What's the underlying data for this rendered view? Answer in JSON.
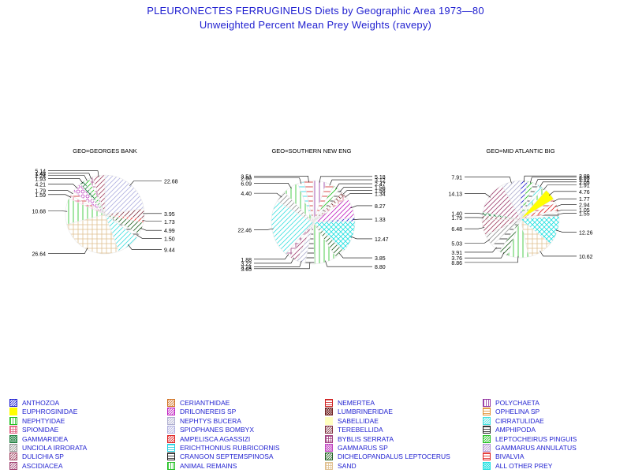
{
  "title": "PLEURONECTES FERRUGINEUS Diets by Geographic Area 1973—80",
  "subtitle": "Unweighted Percent Mean Prey Weights (ravepy)",
  "chart_data": {
    "type": "pie",
    "categories": [
      {
        "name": "ANTHOZOA",
        "color": "#1f1fd0",
        "pattern": "diag"
      },
      {
        "name": "CERIANTHIDAE",
        "color": "#d07020",
        "pattern": "diag"
      },
      {
        "name": "NEMERTEA",
        "color": "#d02020",
        "pattern": "hline"
      },
      {
        "name": "POLYCHAETA",
        "color": "#9030a0",
        "pattern": "vline"
      },
      {
        "name": "EUPHROSINIDAE",
        "color": "#ffff00",
        "pattern": "solid"
      },
      {
        "name": "DRILONEREIS SP",
        "color": "#c020c0",
        "pattern": "diag"
      },
      {
        "name": "LUMBRINERIDAE",
        "color": "#702020",
        "pattern": "cross"
      },
      {
        "name": "OPHELINA SP",
        "color": "#e09030",
        "pattern": "hline"
      },
      {
        "name": "NEPHTYIDAE",
        "color": "#20c020",
        "pattern": "vline"
      },
      {
        "name": "NEPHTYS BUCERA",
        "color": "#b0b0d0",
        "pattern": "diag"
      },
      {
        "name": "SABELLIDAE",
        "color": "#ffffc0",
        "pattern": "solid"
      },
      {
        "name": "CIRRATULIDAE",
        "color": "#40e0e0",
        "pattern": "diag"
      },
      {
        "name": "SPIONIDAE",
        "color": "#e06080",
        "pattern": "grid"
      },
      {
        "name": "SPIOPHANES BOMBYX",
        "color": "#b0b0e0",
        "pattern": "diag"
      },
      {
        "name": "TEREBELLIDA",
        "color": "#803040",
        "pattern": "diag"
      },
      {
        "name": "AMPHIPODA",
        "color": "#202020",
        "pattern": "hline"
      },
      {
        "name": "GAMMARIDEA",
        "color": "#208040",
        "pattern": "cross"
      },
      {
        "name": "AMPELISCA AGASSIZI",
        "color": "#e02020",
        "pattern": "diag"
      },
      {
        "name": "BYBLIS SERRATA",
        "color": "#a04080",
        "pattern": "grid"
      },
      {
        "name": "LEPTOCHEIRUS PINGUIS",
        "color": "#20c020",
        "pattern": "diag"
      },
      {
        "name": "UNCIOLA IRRORATA",
        "color": "#909090",
        "pattern": "diag"
      },
      {
        "name": "ERICHTHONIUS RUBRICORNIS",
        "color": "#20d0e0",
        "pattern": "hline"
      },
      {
        "name": "GAMMARUS SP",
        "color": "#c040c0",
        "pattern": "circle"
      },
      {
        "name": "GAMMARUS ANNULATUS",
        "color": "#b090d0",
        "pattern": "diag"
      },
      {
        "name": "DULICHIA SP",
        "color": "#a04060",
        "pattern": "diag"
      },
      {
        "name": "CRANGON SEPTEMSPINOSA",
        "color": "#202020",
        "pattern": "hline"
      },
      {
        "name": "DICHELOPANDALUS LEPTOCERUS",
        "color": "#206020",
        "pattern": "diag"
      },
      {
        "name": "BIVALVIA",
        "color": "#e02020",
        "pattern": "hline"
      },
      {
        "name": "ASCIDIACEA",
        "color": "#a04070",
        "pattern": "diag"
      },
      {
        "name": "ANIMAL REMAINS",
        "color": "#20c020",
        "pattern": "vline"
      },
      {
        "name": "SAND",
        "color": "#e0c090",
        "pattern": "grid"
      },
      {
        "name": "ALL OTHER PREY",
        "color": "#20e0e0",
        "pattern": "cross"
      }
    ],
    "pies": [
      {
        "label": "GEO=GEORGES BANK",
        "slices": [
          {
            "category": "SPIOPHANES BOMBYX",
            "value": 22.68,
            "label": "22.68"
          },
          {
            "category": "TEREBELLIDA",
            "value": 3.95,
            "label": "3.95"
          },
          {
            "category": "AMPELISCA AGASSIZI",
            "value": 1.73,
            "label": "1.73"
          },
          {
            "category": "DICHELOPANDALUS LEPTOCERUS",
            "value": 4.99,
            "label": "4.99"
          },
          {
            "category": "AMPHIPODA",
            "value": 1.5,
            "label": "1.50"
          },
          {
            "category": "CIRRATULIDAE",
            "value": 9.44,
            "label": "9.44"
          },
          {
            "category": "SAND",
            "value": 26.64,
            "label": "26.64"
          },
          {
            "category": "NEPHTYIDAE",
            "value": 10.68,
            "label": "10.68"
          },
          {
            "category": "SPIONIDAE",
            "value": 1.59,
            "label": "1.59"
          },
          {
            "category": "NEMERTEA",
            "value": 1.79,
            "label": "1.79"
          },
          {
            "category": "GAMMARUS SP",
            "value": 4.21,
            "label": "4.21"
          },
          {
            "category": "GAMMARIDEA",
            "value": 1.93,
            "label": "1.93"
          },
          {
            "category": "LEPTOCHEIRUS PINGUIS",
            "value": 2.24,
            "label": "2.24"
          },
          {
            "category": "BYBLIS SERRATA",
            "value": 1.48,
            "label": "1.48"
          },
          {
            "category": "DULICHIA SP",
            "value": 5.14,
            "label": "5.14"
          }
        ]
      },
      {
        "label": "GEO=SOUTHERN NEW ENG",
        "slices": [
          {
            "category": "POLYCHAETA",
            "value": 5.18,
            "label": "5.18"
          },
          {
            "category": "NEMERTEA",
            "value": 3.12,
            "label": "3.12"
          },
          {
            "category": "LEPTOCHEIRUS PINGUIS",
            "value": 2.47,
            "label": "2.47"
          },
          {
            "category": "AMPHIPODA",
            "value": 1.56,
            "label": "1.56"
          },
          {
            "category": "LUMBRINERIDAE",
            "value": 1.58,
            "label": "1.58"
          },
          {
            "category": "SPIONIDAE",
            "value": 1.34,
            "label": "1.34"
          },
          {
            "category": "DRILONEREIS SP",
            "value": 8.27,
            "label": "8.27"
          },
          {
            "category": "ANTHOZOA",
            "value": 1.33,
            "label": "1.33"
          },
          {
            "category": "ALL OTHER PREY",
            "value": 12.47,
            "label": "12.47"
          },
          {
            "category": "DICHELOPANDALUS LEPTOCERUS",
            "value": 3.85,
            "label": "3.85"
          },
          {
            "category": "ANIMAL REMAINS",
            "value": 8.8,
            "label": "8.80"
          },
          {
            "category": "AMPHIPODA",
            "value": 3.65,
            "label": "3.65"
          },
          {
            "category": "NEPHTYS BUCERA",
            "value": 3.24,
            "label": "3.24"
          },
          {
            "category": "ASCIDIACEA",
            "value": 3.22,
            "label": "3.22"
          },
          {
            "category": "BYBLIS SERRATA",
            "value": 1.88,
            "label": "1.88"
          },
          {
            "category": "CIRRATULIDAE",
            "value": 22.46,
            "label": "22.46"
          },
          {
            "category": "UNCIOLA IRRORATA",
            "value": 4.4,
            "label": "4.40"
          },
          {
            "category": "NEPHTYIDAE",
            "value": 6.09,
            "label": "6.09"
          },
          {
            "category": "ERICHTHONIUS RUBRICORNIS",
            "value": 2.6,
            "label": "2.60"
          },
          {
            "category": "NEMERTEA",
            "value": 3.51,
            "label": "3.51"
          }
        ]
      },
      {
        "label": "GEO=MID ATLANTIC BIG",
        "slices": [
          {
            "category": "ANTHOZOA",
            "value": 2.89,
            "label": "2.89"
          },
          {
            "category": "LEPTOCHEIRUS PINGUIS",
            "value": 2.55,
            "label": "2.55"
          },
          {
            "category": "AMPHIPODA",
            "value": 2.12,
            "label": "2.12"
          },
          {
            "category": "CIRRATULIDAE",
            "value": 2.05,
            "label": "2.05"
          },
          {
            "category": "NEPHTYIDAE",
            "value": 1.91,
            "label": "1.91"
          },
          {
            "category": "EUPHROSINIDAE",
            "value": 4.76,
            "label": "4.76"
          },
          {
            "category": "NEMERTEA",
            "value": 1.77,
            "label": "1.77"
          },
          {
            "category": "AMPELISCA AGASSIZI",
            "value": 2.94,
            "label": "2.94"
          },
          {
            "category": "BIVALVIA",
            "value": 1.05,
            "label": "1.05"
          },
          {
            "category": "AMPHIPODA",
            "value": 1.55,
            "label": "1.55"
          },
          {
            "category": "ALL OTHER PREY",
            "value": 12.26,
            "label": "12.26"
          },
          {
            "category": "SAND",
            "value": 10.62,
            "label": "10.62"
          },
          {
            "category": "ANIMAL REMAINS",
            "value": 8.86,
            "label": "8.86"
          },
          {
            "category": "DICHELOPANDALUS LEPTOCERUS",
            "value": 3.76,
            "label": "3.76"
          },
          {
            "category": "CRANGON SEPTEMSPINOSA",
            "value": 3.91,
            "label": "3.91"
          },
          {
            "category": "UNCIOLA IRRORATA",
            "value": 5.03,
            "label": "5.03"
          },
          {
            "category": "DULICHIA SP",
            "value": 6.48,
            "label": "6.48"
          },
          {
            "category": "TEREBELLIDA",
            "value": 1.79,
            "label": "1.79"
          },
          {
            "category": "GAMMARIDEA",
            "value": 1.4,
            "label": "1.40"
          },
          {
            "category": "ASCIDIACEA",
            "value": 14.13,
            "label": "14.13"
          },
          {
            "category": "NEPHTYS BUCERA",
            "value": 7.91,
            "label": "7.91"
          }
        ]
      }
    ]
  }
}
